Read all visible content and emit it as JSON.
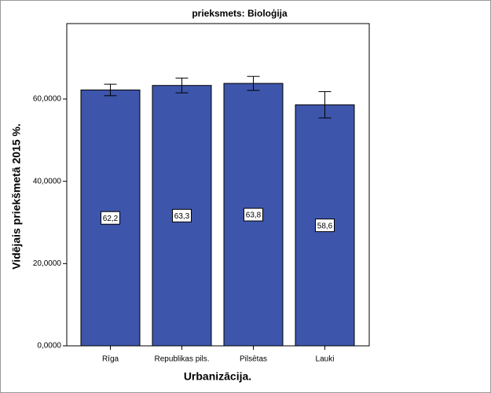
{
  "chart_data": {
    "type": "bar",
    "title": "prieksmets: Bioloģija",
    "x_label": "Urbanizācija.",
    "y_label": "Vidējais priekšmetā 2015 %.",
    "categories": [
      "Rīga",
      "Republikas pils.",
      "Pilsētas",
      "Lauki"
    ],
    "values": [
      62.2,
      63.3,
      63.8,
      58.6
    ],
    "value_labels": [
      "62,2",
      "63,3",
      "63,8",
      "58,6"
    ],
    "errors": [
      1.4,
      1.8,
      1.7,
      3.2
    ],
    "color": "#3d55aa",
    "ylim": [
      0,
      78.34
    ],
    "yticks": [
      {
        "value": 0,
        "label": "0,0000"
      },
      {
        "value": 20,
        "label": "20,0000"
      },
      {
        "value": 40,
        "label": "40,0000"
      },
      {
        "value": 60,
        "label": "60,0000"
      }
    ],
    "grid": false
  }
}
